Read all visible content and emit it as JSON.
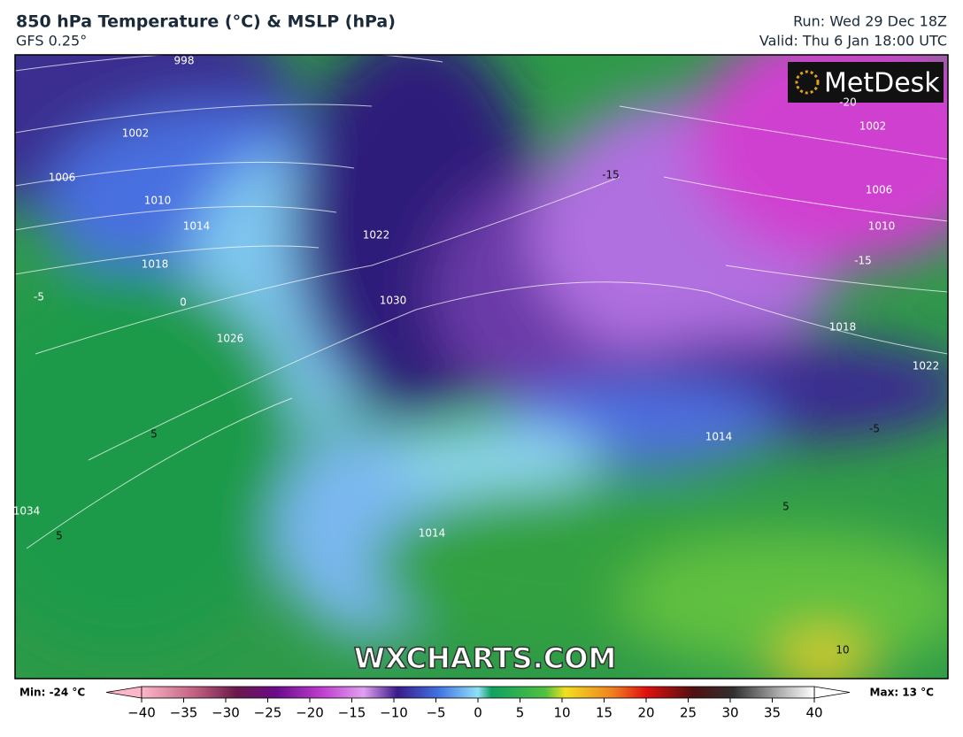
{
  "header": {
    "title": "850 hPa Temperature (°C) & MSLP (hPa)",
    "subtitle": "GFS 0.25°",
    "run": "Run: Wed 29 Dec 18Z",
    "valid": "Valid: Thu 6 Jan 18:00 UTC"
  },
  "map": {
    "logo": "MetDesk",
    "watermark": "WXCHARTS.COM",
    "contour_labels": [
      "998",
      "1002",
      "1006",
      "1010",
      "1014",
      "1018",
      "1022",
      "1026",
      "1030",
      "1034",
      "-20",
      "1002",
      "1006",
      "1010",
      "-15",
      "1018",
      "1022",
      "-15",
      "-5",
      "0",
      "5",
      "5",
      "-5",
      "5",
      "10",
      "1014",
      "1014"
    ]
  },
  "colorbar": {
    "min_label": "Min: -24 °C",
    "max_label": "Max: 13 °C",
    "ticks": [
      {
        "value": -40,
        "label": "−40"
      },
      {
        "value": -35,
        "label": "−35"
      },
      {
        "value": -30,
        "label": "−30"
      },
      {
        "value": -25,
        "label": "−25"
      },
      {
        "value": -20,
        "label": "−20"
      },
      {
        "value": -15,
        "label": "−15"
      },
      {
        "value": -10,
        "label": "−10"
      },
      {
        "value": -5,
        "label": "−5"
      },
      0,
      5,
      10,
      15,
      20,
      25,
      30,
      35,
      40
    ]
  }
}
